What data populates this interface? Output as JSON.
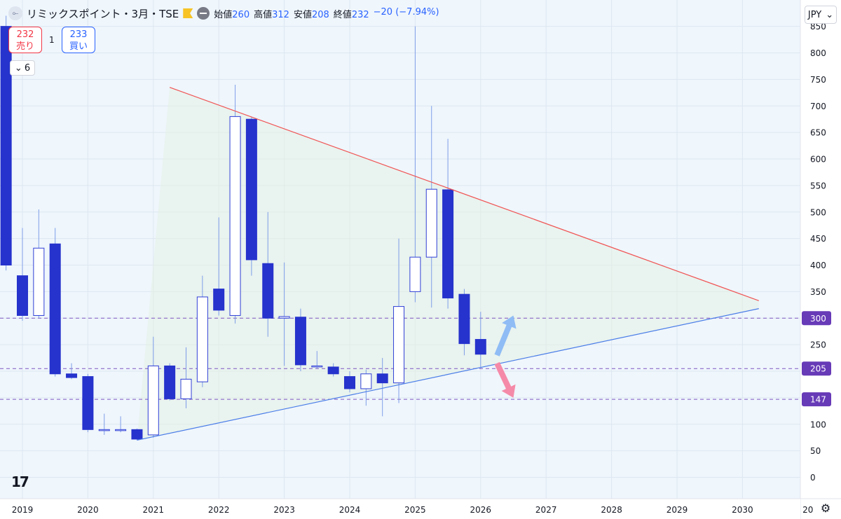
{
  "header": {
    "symbol_icon": "chart-logo-icon",
    "title": "リミックスポイント・3月・TSE",
    "open_label": "始値",
    "open": "260",
    "high_label": "高値",
    "high": "312",
    "low_label": "安値",
    "low": "208",
    "close_label": "終値",
    "close": "232",
    "change": "−20 (−7.94%)"
  },
  "trade": {
    "sell_price": "232",
    "sell_label": "売り",
    "quantity": "1",
    "buy_price": "233",
    "buy_label": "買い"
  },
  "indicators_toggle": "6",
  "currency": "JPY",
  "watermark": "17",
  "colors": {
    "bull_border": "#2f3fd6",
    "bear_fill": "#2633cc",
    "wick": "#7e9ee8",
    "resistance": "#f05454",
    "support": "#4a7de8",
    "level": "#7e57c2",
    "arrow_up": "#8fbcf5",
    "arrow_down": "#f58aa8"
  },
  "chart_data": {
    "type": "candlestick",
    "x_ticks": [
      "2019",
      "2020",
      "2021",
      "2022",
      "2023",
      "2024",
      "2025",
      "2026",
      "2027",
      "2028",
      "2029",
      "2030",
      "20"
    ],
    "y_ticks": [
      0,
      50,
      100,
      150,
      200,
      250,
      300,
      350,
      400,
      450,
      500,
      550,
      600,
      650,
      700,
      750,
      800,
      850
    ],
    "ylim": [
      -20,
      880
    ],
    "candles": [
      {
        "t": 2018.75,
        "o": 850,
        "h": 870,
        "l": 390,
        "c": 400
      },
      {
        "t": 2019.0,
        "o": 380,
        "h": 470,
        "l": 295,
        "c": 305
      },
      {
        "t": 2019.25,
        "o": 305,
        "h": 505,
        "l": 300,
        "c": 432
      },
      {
        "t": 2019.5,
        "o": 440,
        "h": 470,
        "l": 190,
        "c": 195
      },
      {
        "t": 2019.75,
        "o": 195,
        "h": 215,
        "l": 185,
        "c": 188
      },
      {
        "t": 2020.0,
        "o": 190,
        "h": 195,
        "l": 85,
        "c": 90
      },
      {
        "t": 2020.25,
        "o": 88,
        "h": 120,
        "l": 80,
        "c": 90
      },
      {
        "t": 2020.5,
        "o": 90,
        "h": 115,
        "l": 85,
        "c": 90
      },
      {
        "t": 2020.75,
        "o": 90,
        "h": 92,
        "l": 70,
        "c": 72
      },
      {
        "t": 2021.0,
        "o": 80,
        "h": 265,
        "l": 75,
        "c": 210
      },
      {
        "t": 2021.25,
        "o": 210,
        "h": 215,
        "l": 145,
        "c": 148
      },
      {
        "t": 2021.5,
        "o": 148,
        "h": 245,
        "l": 130,
        "c": 185
      },
      {
        "t": 2021.75,
        "o": 180,
        "h": 380,
        "l": 170,
        "c": 340
      },
      {
        "t": 2022.0,
        "o": 355,
        "h": 490,
        "l": 305,
        "c": 315
      },
      {
        "t": 2022.25,
        "o": 305,
        "h": 740,
        "l": 290,
        "c": 680
      },
      {
        "t": 2022.5,
        "o": 675,
        "h": 680,
        "l": 380,
        "c": 410
      },
      {
        "t": 2022.75,
        "o": 403,
        "h": 500,
        "l": 265,
        "c": 300
      },
      {
        "t": 2023.0,
        "o": 300,
        "h": 405,
        "l": 210,
        "c": 303
      },
      {
        "t": 2023.25,
        "o": 302,
        "h": 318,
        "l": 200,
        "c": 212
      },
      {
        "t": 2023.5,
        "o": 210,
        "h": 238,
        "l": 205,
        "c": 210
      },
      {
        "t": 2023.75,
        "o": 208,
        "h": 215,
        "l": 190,
        "c": 195
      },
      {
        "t": 2024.0,
        "o": 190,
        "h": 200,
        "l": 160,
        "c": 167
      },
      {
        "t": 2024.25,
        "o": 167,
        "h": 203,
        "l": 135,
        "c": 195
      },
      {
        "t": 2024.5,
        "o": 195,
        "h": 225,
        "l": 115,
        "c": 178
      },
      {
        "t": 2024.75,
        "o": 178,
        "h": 450,
        "l": 140,
        "c": 322
      },
      {
        "t": 2025.0,
        "o": 350,
        "h": 850,
        "l": 330,
        "c": 415
      },
      {
        "t": 2025.25,
        "o": 415,
        "h": 700,
        "l": 320,
        "c": 543
      },
      {
        "t": 2025.5,
        "o": 542,
        "h": 638,
        "l": 318,
        "c": 338
      },
      {
        "t": 2025.75,
        "o": 345,
        "h": 355,
        "l": 230,
        "c": 252
      },
      {
        "t": 2026.0,
        "o": 260,
        "h": 312,
        "l": 208,
        "c": 232
      }
    ],
    "resistance_line": {
      "from": [
        2021.25,
        735
      ],
      "to": [
        2030.25,
        333
      ]
    },
    "support_line": {
      "from": [
        2020.75,
        70
      ],
      "to": [
        2030.25,
        318
      ]
    },
    "levels": [
      {
        "value": 300,
        "label": "300"
      },
      {
        "value": 205,
        "label": "205"
      },
      {
        "value": 147,
        "label": "147"
      }
    ],
    "arrows": [
      {
        "type": "up",
        "from": [
          2026.25,
          230
        ],
        "to": [
          2026.5,
          305
        ]
      },
      {
        "type": "down",
        "from": [
          2026.25,
          215
        ],
        "to": [
          2026.5,
          150
        ]
      }
    ]
  }
}
